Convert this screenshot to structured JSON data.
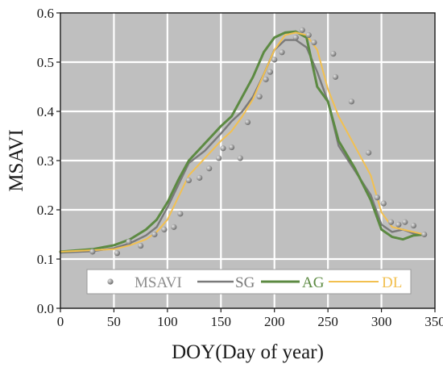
{
  "chart_data": {
    "type": "line",
    "title": "",
    "xlabel": "DOY(Day of year)",
    "ylabel": "MSAVI",
    "xlim": [
      0,
      350
    ],
    "ylim": [
      0.0,
      0.6
    ],
    "x_ticks": [
      0,
      50,
      100,
      150,
      200,
      250,
      300,
      350
    ],
    "y_ticks": [
      0.0,
      0.1,
      0.2,
      0.3,
      0.4,
      0.5,
      0.6
    ],
    "x_tick_labels": [
      "0",
      "50",
      "100",
      "150",
      "200",
      "250",
      "300",
      "350"
    ],
    "y_tick_labels": [
      "0.0",
      "0.1",
      "0.2",
      "0.3",
      "0.4",
      "0.5",
      "0.6"
    ],
    "grid": true,
    "legend_placement": "bottom-center",
    "colors": {
      "plot_background": "#bfbfbf",
      "grid": "#ffffff",
      "MSAVI": "#8c8c8c",
      "SG": "#7a7a7a",
      "AG": "#5c8a42",
      "DL": "#f2c050"
    },
    "legend": [
      "MSAVI",
      "SG",
      "AG",
      "DL"
    ],
    "series": [
      {
        "name": "MSAVI",
        "type": "scatter",
        "x": [
          30,
          53,
          64,
          75,
          88,
          97,
          106,
          112,
          120,
          130,
          139,
          148,
          152,
          160,
          168,
          175,
          186,
          192,
          196,
          200,
          207,
          220,
          226,
          232,
          237,
          255,
          257,
          272,
          288,
          296,
          302,
          309,
          316,
          322,
          330,
          340
        ],
        "y": [
          0.115,
          0.112,
          0.135,
          0.127,
          0.15,
          0.16,
          0.165,
          0.192,
          0.26,
          0.265,
          0.284,
          0.305,
          0.325,
          0.327,
          0.305,
          0.378,
          0.43,
          0.465,
          0.48,
          0.505,
          0.52,
          0.55,
          0.565,
          0.555,
          0.54,
          0.517,
          0.47,
          0.42,
          0.316,
          0.225,
          0.213,
          0.175,
          0.17,
          0.175,
          0.168,
          0.15
        ]
      },
      {
        "name": "SG",
        "type": "line",
        "x": [
          0,
          30,
          50,
          65,
          80,
          90,
          100,
          110,
          120,
          135,
          150,
          160,
          170,
          180,
          190,
          200,
          210,
          220,
          230,
          240,
          250,
          260,
          275,
          290,
          300,
          310,
          320,
          330,
          340
        ],
        "y": [
          0.113,
          0.116,
          0.122,
          0.132,
          0.148,
          0.165,
          0.205,
          0.25,
          0.295,
          0.32,
          0.355,
          0.38,
          0.4,
          0.43,
          0.475,
          0.525,
          0.545,
          0.545,
          0.53,
          0.48,
          0.42,
          0.33,
          0.28,
          0.23,
          0.17,
          0.155,
          0.16,
          0.152,
          0.15
        ]
      },
      {
        "name": "AG",
        "type": "line",
        "x": [
          0,
          30,
          50,
          65,
          80,
          90,
          100,
          110,
          120,
          135,
          150,
          160,
          170,
          180,
          190,
          200,
          210,
          220,
          230,
          240,
          250,
          260,
          275,
          290,
          300,
          310,
          320,
          330,
          340
        ],
        "y": [
          0.115,
          0.12,
          0.128,
          0.14,
          0.16,
          0.18,
          0.215,
          0.26,
          0.3,
          0.335,
          0.37,
          0.39,
          0.43,
          0.47,
          0.52,
          0.55,
          0.56,
          0.562,
          0.55,
          0.45,
          0.42,
          0.34,
          0.285,
          0.22,
          0.16,
          0.145,
          0.14,
          0.148,
          0.15
        ]
      },
      {
        "name": "DL",
        "type": "line",
        "x": [
          0,
          30,
          50,
          65,
          80,
          90,
          100,
          110,
          120,
          135,
          150,
          160,
          170,
          180,
          190,
          200,
          210,
          220,
          230,
          240,
          250,
          260,
          275,
          290,
          300,
          310,
          320,
          330,
          340
        ],
        "y": [
          0.115,
          0.118,
          0.12,
          0.128,
          0.14,
          0.155,
          0.18,
          0.225,
          0.27,
          0.305,
          0.34,
          0.36,
          0.39,
          0.425,
          0.475,
          0.525,
          0.555,
          0.56,
          0.555,
          0.525,
          0.445,
          0.39,
          0.33,
          0.27,
          0.195,
          0.165,
          0.16,
          0.155,
          0.15
        ]
      }
    ]
  }
}
